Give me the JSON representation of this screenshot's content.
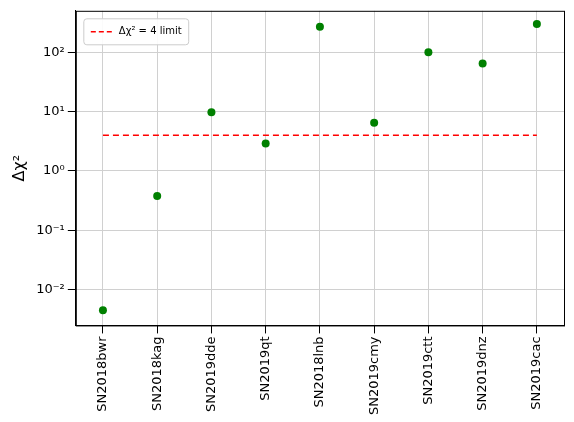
{
  "chart_data": {
    "type": "scatter",
    "ylabel": "Δχ²",
    "categories": [
      "SN2018bwr",
      "SN2018kag",
      "SN2019dde",
      "SN2019qt",
      "SN2018lnb",
      "SN2019cmy",
      "SN2019ctt",
      "SN2019dnz",
      "SN2019cac"
    ],
    "series": [
      {
        "type": "scatter",
        "color": "#008000",
        "marker": "circle",
        "values": [
          0.0045,
          0.38,
          9.8,
          2.9,
          270,
          6.5,
          100,
          65,
          300
        ]
      },
      {
        "name": "Δχ² = 4 limit",
        "type": "line",
        "color": "#ff0000",
        "line_style": "dashed",
        "values": [
          4,
          4,
          4,
          4,
          4,
          4,
          4,
          4,
          4
        ]
      }
    ],
    "log": "y",
    "ylim": [
      0.0025,
      500
    ],
    "yticks": [
      {
        "value": 0.01,
        "label": "10⁻²"
      },
      {
        "value": 0.1,
        "label": "10⁻¹"
      },
      {
        "value": 1,
        "label": "10⁰"
      },
      {
        "value": 10,
        "label": "10¹"
      },
      {
        "value": 100,
        "label": "10²"
      }
    ],
    "grid": true,
    "legend": "upper left"
  }
}
